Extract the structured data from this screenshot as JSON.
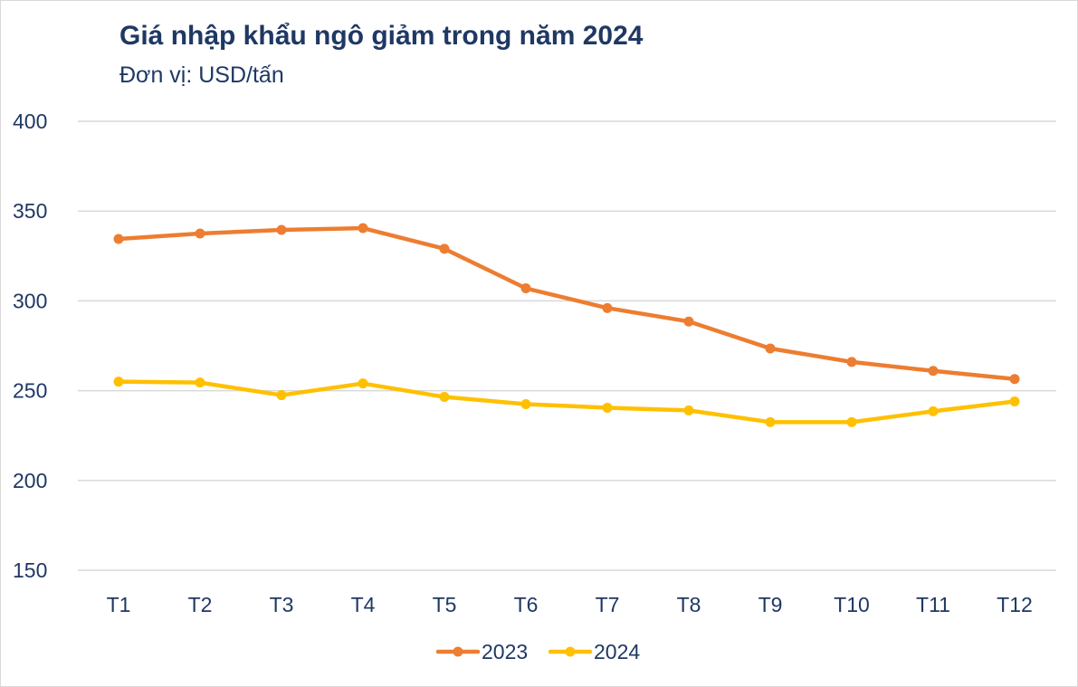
{
  "chart_data": {
    "type": "line",
    "title": "Giá nhập khẩu ngô giảm trong năm 2024",
    "subtitle": "Đơn vị: USD/tấn",
    "xlabel": "",
    "ylabel": "",
    "categories": [
      "T1",
      "T2",
      "T3",
      "T4",
      "T5",
      "T6",
      "T7",
      "T8",
      "T9",
      "T10",
      "T11",
      "T12"
    ],
    "yticks": [
      150,
      200,
      250,
      300,
      350,
      400
    ],
    "ylim": [
      150,
      400
    ],
    "grid": true,
    "legend_position": "bottom-center",
    "series": [
      {
        "name": "2023",
        "color": "#ed7d31",
        "values": [
          334.5,
          337.5,
          339.5,
          340.5,
          329,
          307,
          296,
          288.5,
          273.5,
          266,
          261,
          256.5
        ]
      },
      {
        "name": "2024",
        "color": "#ffc000",
        "values": [
          255,
          254.5,
          247.5,
          254,
          246.5,
          242.5,
          240.5,
          239,
          232.5,
          232.5,
          238.5,
          244
        ]
      }
    ]
  }
}
